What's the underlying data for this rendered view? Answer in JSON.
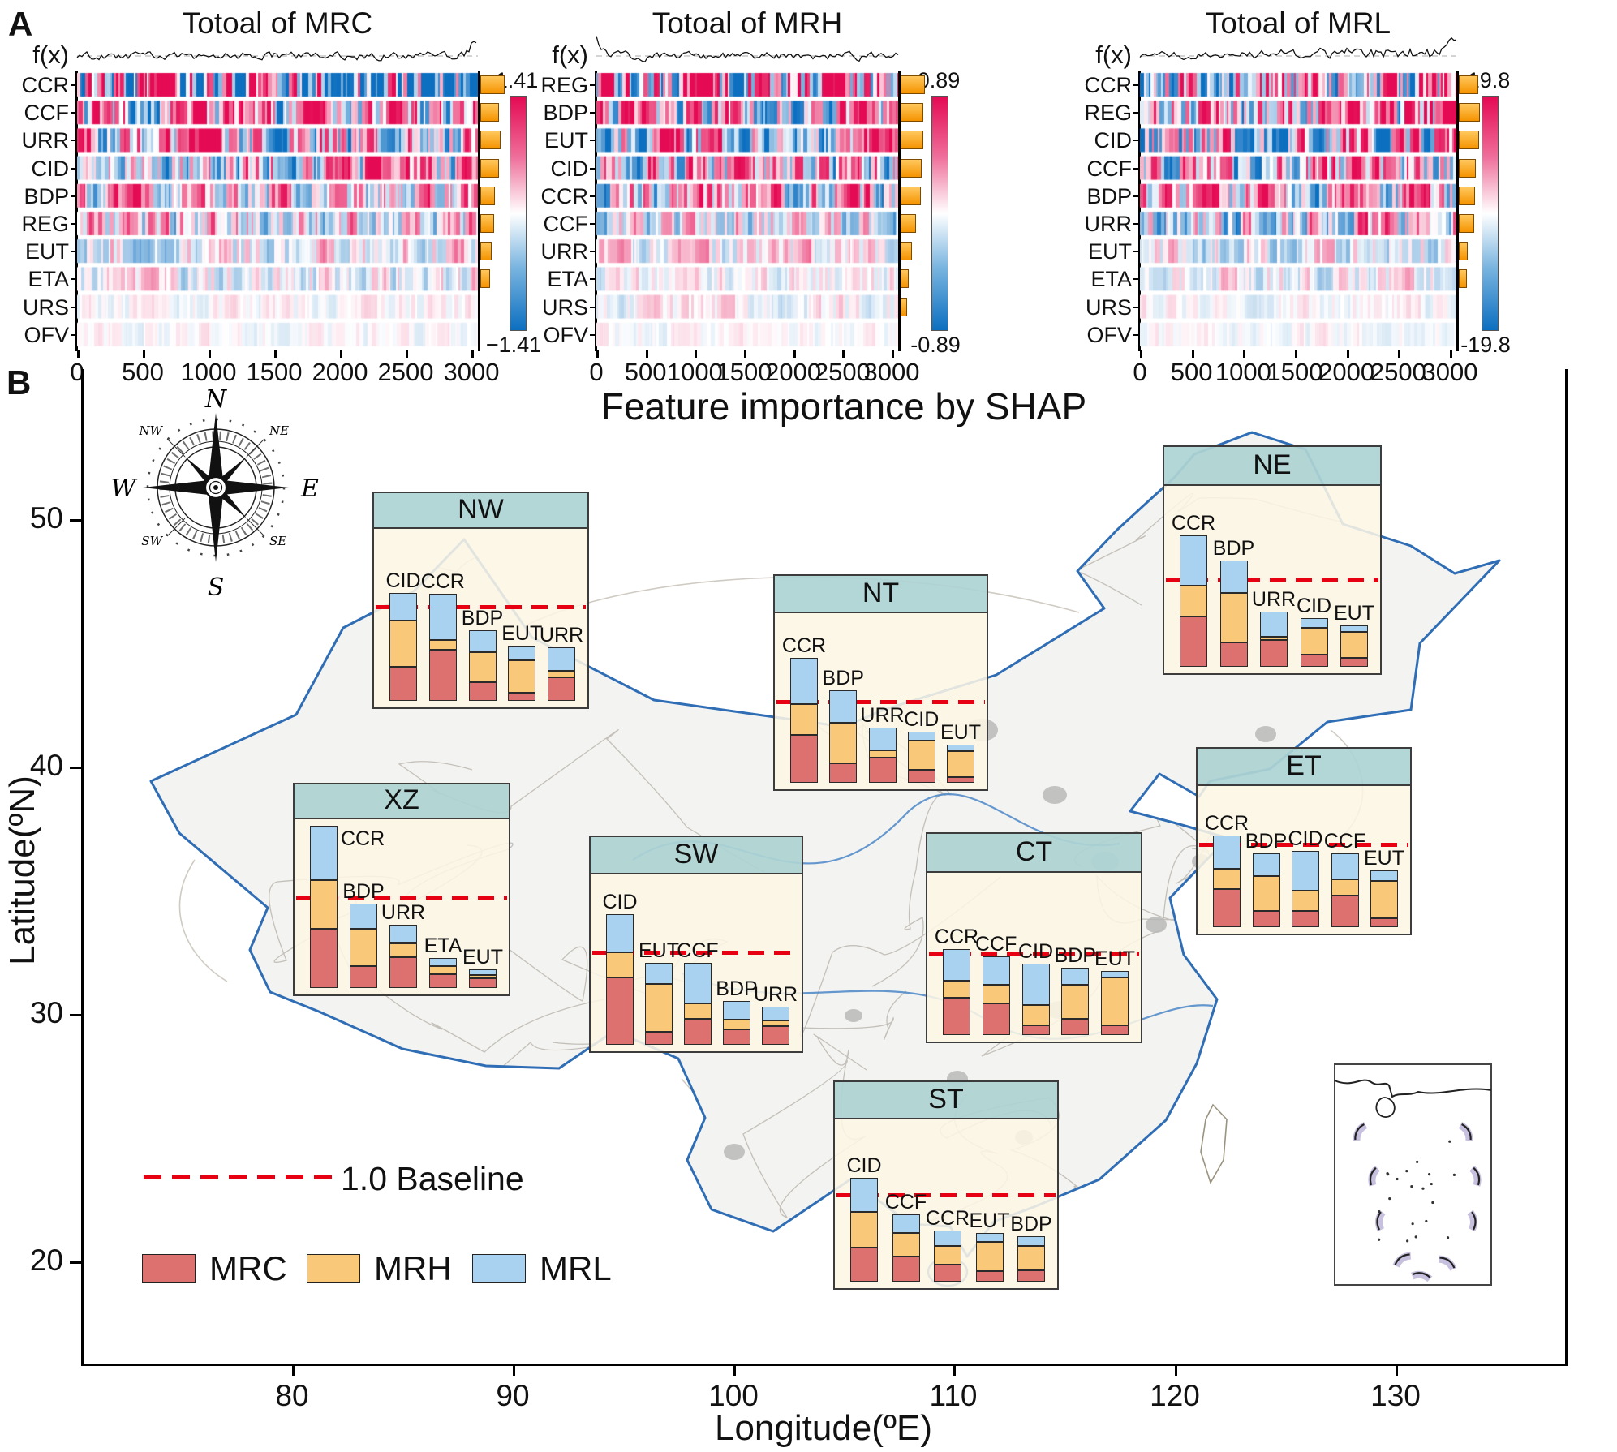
{
  "panel_a": {
    "label": "A",
    "fx_label": "f(x)"
  },
  "chart_data": [
    {
      "type": "heatmap",
      "title": "Totoal of MRC",
      "x_ticks": [
        0,
        500,
        1000,
        1500,
        2000,
        2500,
        3000
      ],
      "x_range": [
        0,
        3000
      ],
      "colorbar_max": "1.41",
      "colorbar_min": "−1.41",
      "rows": [
        "CCR",
        "CCF",
        "URR",
        "CID",
        "BDP",
        "REG",
        "EUT",
        "ETA",
        "URS",
        "OFV"
      ],
      "importance": [
        1.0,
        0.78,
        0.82,
        0.78,
        0.6,
        0.55,
        0.48,
        0.4,
        0,
        0
      ],
      "amplitude": [
        1.0,
        0.75,
        0.7,
        0.6,
        0.5,
        0.45,
        0.28,
        0.22,
        0.07,
        0.05
      ],
      "trend": [
        [
          0.5,
          -0.9
        ],
        [
          0,
          0.25
        ],
        [
          0.1,
          0.1
        ],
        [
          -0.1,
          0.3
        ],
        [
          0,
          0
        ],
        [
          0,
          0.1
        ],
        [
          0,
          0
        ],
        [
          0,
          0
        ],
        [
          0,
          0
        ],
        [
          0,
          0
        ]
      ],
      "fx_spike": "right"
    },
    {
      "type": "heatmap",
      "title": "Totoal of MRH",
      "x_ticks": [
        0,
        500,
        1000,
        1500,
        2000,
        2500,
        3000
      ],
      "x_range": [
        0,
        3000
      ],
      "colorbar_max": "0.89",
      "colorbar_min": "-0.89",
      "rows": [
        "REG",
        "BDP",
        "EUT",
        "CID",
        "CCR",
        "CCF",
        "URR",
        "ETA",
        "URS",
        "OFV"
      ],
      "importance": [
        1.0,
        0.92,
        0.92,
        0.85,
        0.82,
        0.62,
        0.45,
        0.32,
        0.28,
        0
      ],
      "amplitude": [
        1.0,
        0.8,
        0.75,
        0.65,
        0.6,
        0.38,
        0.22,
        0.14,
        0.12,
        0.05
      ],
      "trend": [
        [
          0.2,
          0.1
        ],
        [
          0.15,
          -0.2
        ],
        [
          0,
          0.1
        ],
        [
          0.3,
          -0.1
        ],
        [
          0,
          0.1
        ],
        [
          0,
          0
        ],
        [
          0,
          0
        ],
        [
          0,
          0
        ],
        [
          0,
          0
        ],
        [
          0,
          0
        ]
      ],
      "fx_spike": "left"
    },
    {
      "type": "heatmap",
      "title": "Totoal of MRL",
      "x_ticks": [
        0,
        500,
        1000,
        1500,
        2000,
        2500,
        3000
      ],
      "x_range": [
        0,
        3000
      ],
      "colorbar_max": "19.8",
      "colorbar_min": "-19.8",
      "rows": [
        "CCR",
        "REG",
        "CID",
        "CCF",
        "BDP",
        "URR",
        "EUT",
        "ETA",
        "URS",
        "OFV"
      ],
      "importance": [
        0.92,
        1.0,
        0.95,
        0.82,
        0.78,
        0.72,
        0.42,
        0.38,
        0,
        0
      ],
      "amplitude": [
        0.9,
        0.85,
        0.9,
        0.7,
        0.6,
        0.55,
        0.25,
        0.18,
        0.07,
        0.05
      ],
      "trend": [
        [
          -0.15,
          0.25
        ],
        [
          0.1,
          0.3
        ],
        [
          -0.5,
          0.8
        ],
        [
          0.1,
          0.2
        ],
        [
          0.1,
          0.05
        ],
        [
          0,
          0
        ],
        [
          0,
          0
        ],
        [
          0,
          0
        ],
        [
          0,
          0
        ],
        [
          0,
          0
        ]
      ],
      "fx_spike": "right"
    },
    {
      "type": "bar",
      "title": "Feature importance by SHAP",
      "baseline": 1.0,
      "baseline_label": "1.0 Baseline",
      "series_names": [
        "MRC",
        "MRH",
        "MRL"
      ],
      "series_colors": [
        "#dd7170",
        "#f9c878",
        "#a9d2f0"
      ],
      "regions": [
        {
          "code": "NW",
          "bars": [
            {
              "label": "CID",
              "MRC": 0.36,
              "MRH": 0.49,
              "MRL": 0.3
            },
            {
              "label": "CCR",
              "MRC": 0.54,
              "MRH": 0.11,
              "MRL": 0.49
            },
            {
              "label": "BDP",
              "MRC": 0.2,
              "MRH": 0.32,
              "MRL": 0.23
            },
            {
              "label": "EUT",
              "MRC": 0.09,
              "MRH": 0.34,
              "MRL": 0.16
            },
            {
              "label": "URR",
              "MRC": 0.25,
              "MRH": 0.07,
              "MRL": 0.25
            }
          ]
        },
        {
          "code": "NE",
          "bars": [
            {
              "label": "CCR",
              "MRC": 0.58,
              "MRH": 0.35,
              "MRL": 0.58
            },
            {
              "label": "BDP",
              "MRC": 0.28,
              "MRH": 0.57,
              "MRL": 0.37
            },
            {
              "label": "URR",
              "MRC": 0.31,
              "MRH": 0.04,
              "MRL": 0.29
            },
            {
              "label": "CID",
              "MRC": 0.14,
              "MRH": 0.31,
              "MRL": 0.11
            },
            {
              "label": "EUT",
              "MRC": 0.1,
              "MRH": 0.3,
              "MRL": 0.08
            }
          ]
        },
        {
          "code": "NT",
          "bars": [
            {
              "label": "CCR",
              "MRC": 0.59,
              "MRH": 0.38,
              "MRL": 0.57
            },
            {
              "label": "BDP",
              "MRC": 0.24,
              "MRH": 0.5,
              "MRL": 0.4
            },
            {
              "label": "URR",
              "MRC": 0.31,
              "MRH": 0.09,
              "MRL": 0.28
            },
            {
              "label": "CID",
              "MRC": 0.16,
              "MRH": 0.36,
              "MRL": 0.11
            },
            {
              "label": "EUT",
              "MRC": 0.07,
              "MRH": 0.32,
              "MRL": 0.08
            }
          ]
        },
        {
          "code": "ET",
          "bars": [
            {
              "label": "CCR",
              "MRC": 0.46,
              "MRH": 0.25,
              "MRL": 0.4
            },
            {
              "label": "BDP",
              "MRC": 0.2,
              "MRH": 0.42,
              "MRL": 0.27
            },
            {
              "label": "CID",
              "MRC": 0.2,
              "MRH": 0.24,
              "MRL": 0.48
            },
            {
              "label": "CCF",
              "MRC": 0.38,
              "MRH": 0.2,
              "MRL": 0.31
            },
            {
              "label": "EUT",
              "MRC": 0.11,
              "MRH": 0.45,
              "MRL": 0.13
            }
          ]
        },
        {
          "code": "XZ",
          "bars": [
            {
              "label": "CCR",
              "MRC": 0.66,
              "MRH": 0.54,
              "MRL": 0.6
            },
            {
              "label": "BDP",
              "MRC": 0.24,
              "MRH": 0.42,
              "MRL": 0.28
            },
            {
              "label": "URR",
              "MRC": 0.34,
              "MRH": 0.16,
              "MRL": 0.2
            },
            {
              "label": "ETA",
              "MRC": 0.15,
              "MRH": 0.09,
              "MRL": 0.09
            },
            {
              "label": "EUT",
              "MRC": 0.11,
              "MRH": 0.03,
              "MRL": 0.07
            }
          ]
        },
        {
          "code": "SW",
          "bars": [
            {
              "label": "CID",
              "MRC": 0.73,
              "MRH": 0.27,
              "MRL": 0.41
            },
            {
              "label": "EUT",
              "MRC": 0.14,
              "MRH": 0.52,
              "MRL": 0.23
            },
            {
              "label": "CCF",
              "MRC": 0.28,
              "MRH": 0.17,
              "MRL": 0.44
            },
            {
              "label": "BDP",
              "MRC": 0.17,
              "MRH": 0.1,
              "MRL": 0.2
            },
            {
              "label": "URR",
              "MRC": 0.2,
              "MRH": 0.06,
              "MRL": 0.15
            }
          ]
        },
        {
          "code": "CT",
          "bars": [
            {
              "label": "CCR",
              "MRC": 0.46,
              "MRH": 0.2,
              "MRL": 0.39
            },
            {
              "label": "CCF",
              "MRC": 0.39,
              "MRH": 0.22,
              "MRL": 0.35
            },
            {
              "label": "CID",
              "MRC": 0.12,
              "MRH": 0.25,
              "MRL": 0.5
            },
            {
              "label": "BDP",
              "MRC": 0.2,
              "MRH": 0.41,
              "MRL": 0.21
            },
            {
              "label": "EUT",
              "MRC": 0.12,
              "MRH": 0.58,
              "MRL": 0.08
            }
          ]
        },
        {
          "code": "ST",
          "bars": [
            {
              "label": "CID",
              "MRC": 0.39,
              "MRH": 0.41,
              "MRL": 0.4
            },
            {
              "label": "CCF",
              "MRC": 0.29,
              "MRH": 0.27,
              "MRL": 0.22
            },
            {
              "label": "CCR",
              "MRC": 0.2,
              "MRH": 0.21,
              "MRL": 0.18
            },
            {
              "label": "EUT",
              "MRC": 0.12,
              "MRH": 0.34,
              "MRL": 0.1
            },
            {
              "label": "BDP",
              "MRC": 0.13,
              "MRH": 0.28,
              "MRL": 0.11
            }
          ]
        }
      ]
    }
  ],
  "panel_b": {
    "label": "B",
    "title": "Feature importance by SHAP",
    "xlabel": "Longitude(ºE)",
    "ylabel": "Latitude(ºN)",
    "x_ticks": [
      "80",
      "90",
      "100",
      "110",
      "120",
      "130"
    ],
    "y_ticks": [
      "50",
      "40",
      "30",
      "20"
    ],
    "compass": {
      "n": "N",
      "e": "E",
      "s": "S",
      "w": "W",
      "nw": "NW",
      "ne": "NE",
      "sw": "SW",
      "se": "SE"
    },
    "legend": {
      "baseline_label": "1.0 Baseline",
      "items": [
        {
          "label": "MRC",
          "color": "#dd7170"
        },
        {
          "label": "MRH",
          "color": "#f9c878"
        },
        {
          "label": "MRL",
          "color": "#a9d2f0"
        }
      ]
    }
  }
}
